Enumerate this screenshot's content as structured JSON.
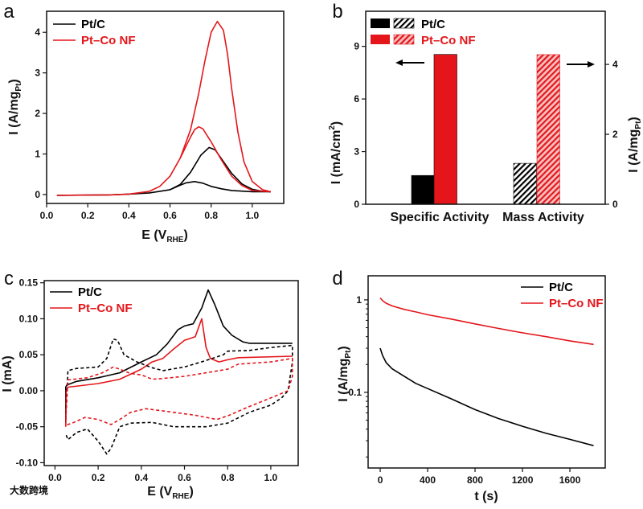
{
  "colors": {
    "pt_c": "#000000",
    "pt_co_nf": "#e4161b"
  },
  "watermark": "大数跨境",
  "chart_data": [
    {
      "panel": "a",
      "type": "line",
      "xlabel": {
        "main": "E (V",
        "sub": "RHE",
        "end": ")"
      },
      "ylabel": {
        "main": "I (A/mg",
        "sub": "Pt",
        "end": ")"
      },
      "xlim": [
        0,
        1.153
      ],
      "ylim": [
        -0.22,
        4.52
      ],
      "xticks": [
        "0.0",
        "0.2",
        "0.4",
        "0.6",
        "0.8",
        "1.0"
      ],
      "yticks": [
        "0",
        "1",
        "2",
        "3",
        "4"
      ],
      "legend_position": "top-left",
      "series": [
        {
          "name": "Pt/C",
          "color": "#000000",
          "forward": [
            [
              0.05,
              -0.02
            ],
            [
              0.3,
              -0.01
            ],
            [
              0.4,
              0.01
            ],
            [
              0.5,
              0.04
            ],
            [
              0.6,
              0.12
            ],
            [
              0.65,
              0.25
            ],
            [
              0.7,
              0.55
            ],
            [
              0.75,
              0.97
            ],
            [
              0.79,
              1.16
            ],
            [
              0.82,
              1.1
            ],
            [
              0.85,
              0.88
            ],
            [
              0.9,
              0.52
            ],
            [
              0.95,
              0.26
            ],
            [
              1.0,
              0.13
            ],
            [
              1.05,
              0.08
            ],
            [
              1.09,
              0.07
            ]
          ],
          "reverse": [
            [
              1.09,
              0.07
            ],
            [
              1.0,
              0.07
            ],
            [
              0.9,
              0.1
            ],
            [
              0.85,
              0.14
            ],
            [
              0.8,
              0.2
            ],
            [
              0.76,
              0.28
            ],
            [
              0.72,
              0.32
            ],
            [
              0.68,
              0.29
            ],
            [
              0.65,
              0.23
            ],
            [
              0.6,
              0.12
            ]
          ]
        },
        {
          "name": "Pt–Co NF",
          "color": "#e4161b",
          "forward": [
            [
              0.05,
              -0.02
            ],
            [
              0.3,
              -0.01
            ],
            [
              0.4,
              0.01
            ],
            [
              0.5,
              0.08
            ],
            [
              0.55,
              0.2
            ],
            [
              0.6,
              0.45
            ],
            [
              0.65,
              0.9
            ],
            [
              0.7,
              1.6
            ],
            [
              0.74,
              2.5
            ],
            [
              0.77,
              3.3
            ],
            [
              0.8,
              4.0
            ],
            [
              0.83,
              4.27
            ],
            [
              0.86,
              4.05
            ],
            [
              0.88,
              3.45
            ],
            [
              0.9,
              2.6
            ],
            [
              0.93,
              1.55
            ],
            [
              0.96,
              0.8
            ],
            [
              1.0,
              0.32
            ],
            [
              1.05,
              0.12
            ],
            [
              1.09,
              0.07
            ]
          ],
          "reverse": [
            [
              1.09,
              0.07
            ],
            [
              1.0,
              0.1
            ],
            [
              0.95,
              0.22
            ],
            [
              0.9,
              0.45
            ],
            [
              0.85,
              0.85
            ],
            [
              0.8,
              1.3
            ],
            [
              0.76,
              1.62
            ],
            [
              0.74,
              1.67
            ],
            [
              0.72,
              1.6
            ],
            [
              0.7,
              1.42
            ],
            [
              0.65,
              0.9
            ]
          ]
        }
      ]
    },
    {
      "panel": "b",
      "type": "bar",
      "categories": [
        "Specific Activity",
        "Mass Activity"
      ],
      "ylabel_left": {
        "main": "I (mA/cm",
        "sup": "2",
        "end": ")"
      },
      "ylabel_right": {
        "main": "I (A/mg",
        "sub": "Pt",
        "end": ")"
      },
      "ylim_left": [
        0,
        11.0
      ],
      "ylim_right": [
        0,
        5.52
      ],
      "yticks_left": [
        "0",
        "3",
        "6",
        "9"
      ],
      "yticks_right": [
        "0",
        "2",
        "4"
      ],
      "legend_position": "top-left",
      "series": [
        {
          "name": "Pt/C",
          "color": "#000000",
          "specific_activity": 1.64,
          "mass_activity": 1.17
        },
        {
          "name": "Pt–Co NF",
          "color": "#e4161b",
          "specific_activity": 8.54,
          "mass_activity": 4.28
        }
      ],
      "annotations": [
        "left arrow: specific activity uses left axis",
        "right arrow: mass activity uses right axis"
      ]
    },
    {
      "panel": "c",
      "type": "line",
      "xlabel": {
        "main": "E (V",
        "sub": "RHE",
        "end": ")"
      },
      "ylabel": {
        "main": "I (mA)"
      },
      "xlim": [
        -0.05,
        1.127
      ],
      "ylim": [
        -0.104,
        0.153
      ],
      "xticks": [
        "0.0",
        "0.2",
        "0.4",
        "0.6",
        "0.8",
        "1.0"
      ],
      "yticks": [
        "-0.10",
        "-0.05",
        "0.00",
        "0.05",
        "0.10",
        "0.15"
      ],
      "legend_position": "top-left",
      "series": [
        {
          "name": "Pt/C",
          "color": "#000000",
          "style": "solid",
          "points": [
            [
              0.05,
              -0.045
            ],
            [
              0.05,
              0.005
            ],
            [
              0.055,
              0.008
            ],
            [
              0.1,
              0.013
            ],
            [
              0.2,
              0.018
            ],
            [
              0.3,
              0.025
            ],
            [
              0.4,
              0.04
            ],
            [
              0.47,
              0.05
            ],
            [
              0.52,
              0.065
            ],
            [
              0.57,
              0.085
            ],
            [
              0.6,
              0.09
            ],
            [
              0.64,
              0.093
            ],
            [
              0.68,
              0.115
            ],
            [
              0.71,
              0.14
            ],
            [
              0.74,
              0.12
            ],
            [
              0.78,
              0.09
            ],
            [
              0.82,
              0.077
            ],
            [
              0.87,
              0.068
            ],
            [
              0.9,
              0.066
            ],
            [
              1.1,
              0.066
            ]
          ]
        },
        {
          "name": "Pt–Co NF",
          "color": "#e4161b",
          "style": "solid",
          "points": [
            [
              0.05,
              -0.05
            ],
            [
              0.052,
              0.0
            ],
            [
              0.06,
              0.005
            ],
            [
              0.2,
              0.01
            ],
            [
              0.3,
              0.016
            ],
            [
              0.4,
              0.03
            ],
            [
              0.45,
              0.04
            ],
            [
              0.5,
              0.045
            ],
            [
              0.55,
              0.058
            ],
            [
              0.6,
              0.07
            ],
            [
              0.65,
              0.075
            ],
            [
              0.68,
              0.1
            ],
            [
              0.7,
              0.06
            ],
            [
              0.72,
              0.045
            ],
            [
              0.76,
              0.04
            ],
            [
              0.8,
              0.043
            ],
            [
              0.85,
              0.046
            ],
            [
              1.1,
              0.048
            ]
          ]
        },
        {
          "name": "Pt/C (background)",
          "color": "#000000",
          "style": "dashed",
          "points": [
            [
              0.05,
              -0.04
            ],
            [
              0.06,
              0.028
            ],
            [
              0.1,
              0.031
            ],
            [
              0.2,
              0.033
            ],
            [
              0.24,
              0.045
            ],
            [
              0.27,
              0.072
            ],
            [
              0.29,
              0.07
            ],
            [
              0.32,
              0.05
            ],
            [
              0.38,
              0.04
            ],
            [
              0.45,
              0.032
            ],
            [
              0.5,
              0.028
            ],
            [
              0.6,
              0.033
            ],
            [
              0.7,
              0.042
            ],
            [
              0.78,
              0.05
            ],
            [
              0.8,
              0.055
            ],
            [
              0.9,
              0.056
            ],
            [
              1.0,
              0.06
            ],
            [
              1.1,
              0.063
            ],
            [
              1.1,
              0.04
            ],
            [
              1.08,
              0.0
            ],
            [
              1.05,
              -0.01
            ],
            [
              1.0,
              -0.02
            ],
            [
              0.9,
              -0.03
            ],
            [
              0.8,
              -0.045
            ],
            [
              0.7,
              -0.05
            ],
            [
              0.55,
              -0.05
            ],
            [
              0.45,
              -0.044
            ],
            [
              0.35,
              -0.045
            ],
            [
              0.3,
              -0.05
            ],
            [
              0.26,
              -0.08
            ],
            [
              0.24,
              -0.088
            ],
            [
              0.2,
              -0.07
            ],
            [
              0.15,
              -0.053
            ],
            [
              0.1,
              -0.058
            ],
            [
              0.06,
              -0.068
            ],
            [
              0.05,
              -0.06
            ]
          ]
        },
        {
          "name": "Pt–Co NF (background)",
          "color": "#e4161b",
          "style": "dashed",
          "points": [
            [
              0.05,
              -0.04
            ],
            [
              0.06,
              0.015
            ],
            [
              0.15,
              0.018
            ],
            [
              0.22,
              0.025
            ],
            [
              0.27,
              0.033
            ],
            [
              0.3,
              0.03
            ],
            [
              0.35,
              0.024
            ],
            [
              0.4,
              0.022
            ],
            [
              0.45,
              0.016
            ],
            [
              0.5,
              0.017
            ],
            [
              0.6,
              0.02
            ],
            [
              0.7,
              0.025
            ],
            [
              0.8,
              0.03
            ],
            [
              0.85,
              0.037
            ],
            [
              1.0,
              0.04
            ],
            [
              1.1,
              0.045
            ],
            [
              1.1,
              0.02
            ],
            [
              1.08,
              0.0
            ],
            [
              1.0,
              -0.01
            ],
            [
              0.9,
              -0.022
            ],
            [
              0.8,
              -0.035
            ],
            [
              0.75,
              -0.04
            ],
            [
              0.65,
              -0.034
            ],
            [
              0.5,
              -0.028
            ],
            [
              0.42,
              -0.025
            ],
            [
              0.35,
              -0.03
            ],
            [
              0.3,
              -0.04
            ],
            [
              0.26,
              -0.047
            ],
            [
              0.2,
              -0.04
            ],
            [
              0.14,
              -0.037
            ],
            [
              0.08,
              -0.045
            ],
            [
              0.05,
              -0.048
            ]
          ]
        }
      ]
    },
    {
      "panel": "d",
      "type": "line",
      "xlabel": {
        "main": "t (s)"
      },
      "ylabel": {
        "main": "I (A/mg",
        "sub": "Pt",
        "end": ")"
      },
      "yscale": "log",
      "xlim": [
        -102,
        1898
      ],
      "ylim": [
        0.0152,
        1.82
      ],
      "xticks": [
        "0",
        "400",
        "800",
        "1200",
        "1600"
      ],
      "yticks": [
        "0.1",
        "1"
      ],
      "legend_position": "top-right",
      "series": [
        {
          "name": "Pt/C",
          "color": "#000000",
          "t": [
            0,
            20,
            50,
            100,
            200,
            300,
            400,
            600,
            800,
            1000,
            1200,
            1400,
            1600,
            1800
          ],
          "values": [
            0.3,
            0.25,
            0.21,
            0.18,
            0.15,
            0.125,
            0.11,
            0.085,
            0.065,
            0.052,
            0.043,
            0.036,
            0.031,
            0.0265
          ]
        },
        {
          "name": "Pt–Co NF",
          "color": "#e4161b",
          "t": [
            0,
            20,
            50,
            100,
            200,
            300,
            400,
            600,
            800,
            1000,
            1200,
            1400,
            1600,
            1800
          ],
          "values": [
            1.05,
            0.98,
            0.92,
            0.86,
            0.79,
            0.74,
            0.69,
            0.62,
            0.55,
            0.49,
            0.44,
            0.4,
            0.36,
            0.33
          ]
        }
      ]
    }
  ],
  "panel_labels": [
    "a",
    "b",
    "c",
    "d"
  ]
}
